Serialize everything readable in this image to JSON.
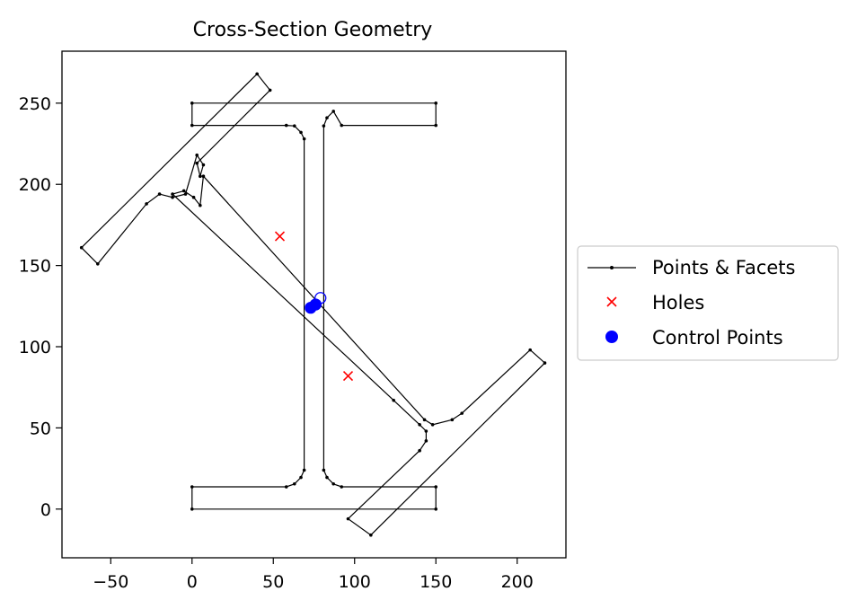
{
  "chart_data": {
    "type": "line",
    "title": "Cross-Section Geometry",
    "xlabel": "",
    "ylabel": "",
    "xlim": [
      -80,
      230
    ],
    "ylim": [
      -30,
      282
    ],
    "x_ticks": [
      -50,
      0,
      50,
      100,
      150,
      200
    ],
    "y_ticks": [
      0,
      50,
      100,
      150,
      200,
      250
    ],
    "x_tick_labels": [
      "−50",
      "0",
      "50",
      "100",
      "150",
      "200"
    ],
    "y_tick_labels": [
      "0",
      "50",
      "100",
      "150",
      "200",
      "250"
    ],
    "grid": false,
    "legend": {
      "placement": "right",
      "entries": [
        "Points & Facets",
        "Holes",
        "Control Points"
      ]
    },
    "colors": {
      "facets": "#000000",
      "holes": "#ff0000",
      "control_points": "#0000ff"
    },
    "series": [
      {
        "name": "Points & Facets",
        "style": "line-with-points",
        "paths": [
          {
            "closed": true,
            "points": [
              [
                0,
                0
              ],
              [
                150,
                0
              ],
              [
                150,
                13.7
              ],
              [
                92,
                13.7
              ],
              [
                87,
                15.5
              ],
              [
                83,
                19.5
              ],
              [
                81,
                24
              ],
              [
                81,
                236
              ],
              [
                83,
                241
              ],
              [
                87,
                245
              ],
              [
                92,
                236.3
              ],
              [
                150,
                236.3
              ],
              [
                150,
                250
              ],
              [
                0,
                250
              ],
              [
                0,
                236.3
              ],
              [
                58,
                236.3
              ],
              [
                63,
                236
              ],
              [
                67,
                232
              ],
              [
                69,
                228
              ],
              [
                69,
                24
              ],
              [
                67,
                19.5
              ],
              [
                63,
                15.5
              ],
              [
                58,
                13.7
              ],
              [
                0,
                13.7
              ]
            ]
          },
          {
            "closed": true,
            "points": [
              [
                -68,
                161
              ],
              [
                40,
                268
              ],
              [
                48,
                258
              ],
              [
                3,
                213
              ],
              [
                5,
                205
              ],
              [
                7,
                212
              ],
              [
                3,
                218
              ],
              [
                -4,
                194
              ],
              [
                -12,
                192
              ],
              [
                -20,
                194
              ],
              [
                -28,
                188
              ],
              [
                -58,
                151
              ]
            ]
          },
          {
            "closed": true,
            "points": [
              [
                -12,
                194
              ],
              [
                -5,
                196
              ],
              [
                1,
                192
              ],
              [
                5,
                187
              ],
              [
                7,
                205
              ],
              [
                143,
                55
              ],
              [
                148,
                52
              ],
              [
                160,
                55
              ],
              [
                166,
                59
              ],
              [
                208,
                98
              ],
              [
                217,
                90
              ],
              [
                110,
                -16
              ],
              [
                96,
                -6
              ],
              [
                140,
                36
              ],
              [
                144,
                42
              ],
              [
                144,
                48
              ],
              [
                140,
                52
              ],
              [
                124,
                67
              ]
            ]
          }
        ]
      },
      {
        "name": "Holes",
        "style": "marker-x",
        "points": [
          [
            54,
            168
          ],
          [
            96,
            82
          ]
        ]
      },
      {
        "name": "Control Points",
        "style": "marker-circle",
        "points": [
          [
            73,
            124
          ],
          [
            76,
            126
          ],
          [
            79,
            130
          ]
        ]
      }
    ]
  }
}
